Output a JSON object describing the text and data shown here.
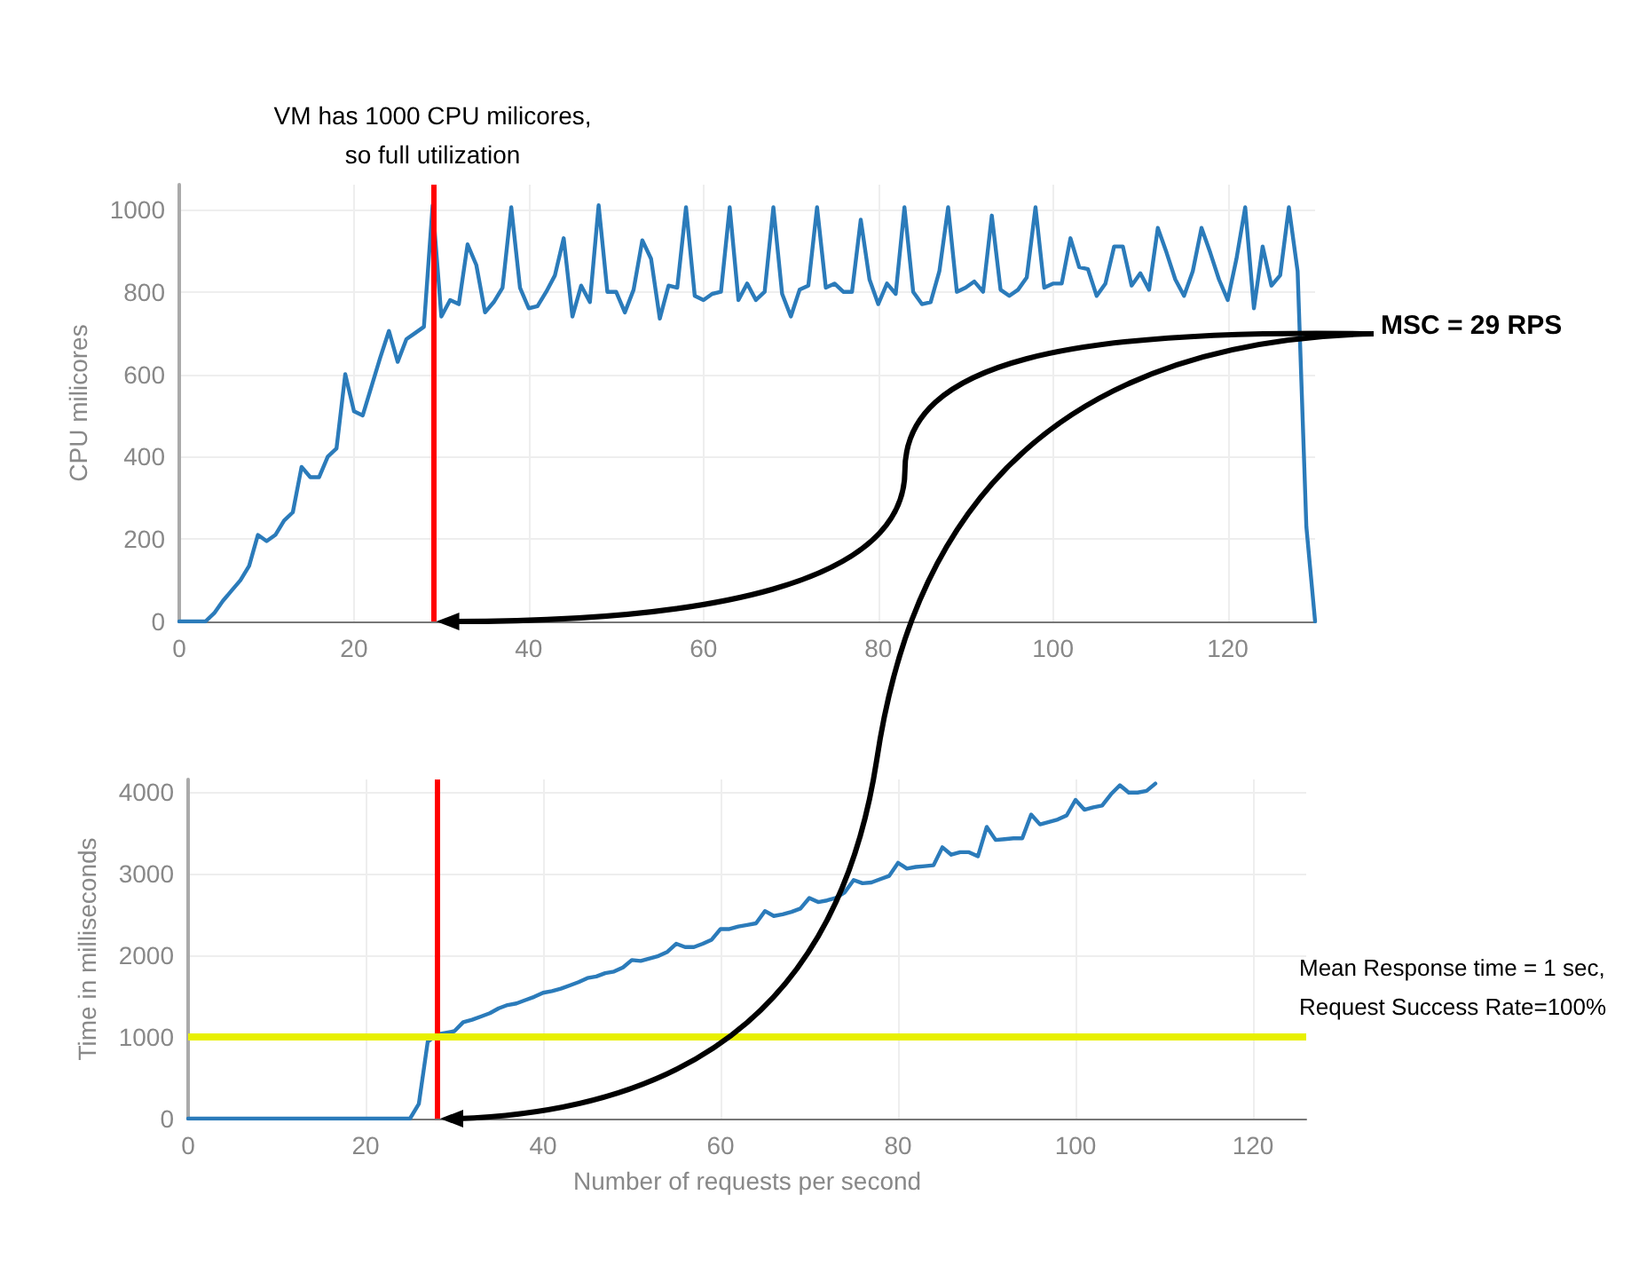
{
  "chart_data": [
    {
      "type": "line",
      "ylabel": "CPU milicores",
      "x": [
        0,
        1,
        2,
        3,
        4,
        5,
        6,
        7,
        8,
        9,
        10,
        11,
        12,
        13,
        14,
        15,
        16,
        17,
        18,
        19,
        20,
        21,
        22,
        23,
        24,
        25,
        26,
        27,
        28,
        29,
        30,
        31,
        32,
        33,
        34,
        35,
        36,
        37,
        38,
        39,
        40,
        41,
        42,
        43,
        44,
        45,
        46,
        47,
        48,
        49,
        50,
        51,
        52,
        53,
        54,
        55,
        56,
        57,
        58,
        59,
        60,
        61,
        62,
        63,
        64,
        65,
        66,
        67,
        68,
        69,
        70,
        71,
        72,
        73,
        74,
        75,
        76,
        77,
        78,
        79,
        80,
        81,
        82,
        83,
        84,
        85,
        86,
        87,
        88,
        89,
        90,
        91,
        92,
        93,
        94,
        95,
        96,
        97,
        98,
        99,
        100,
        101,
        102,
        103,
        104,
        105,
        106,
        107,
        108,
        109,
        110,
        111,
        112,
        113,
        114,
        115,
        116,
        117,
        118,
        119,
        120,
        121,
        122,
        123,
        124,
        125,
        126,
        127,
        128,
        129,
        130
      ],
      "series": [
        {
          "color": "#2b7bba",
          "values": [
            0,
            0,
            0,
            0,
            20,
            50,
            75,
            100,
            135,
            210,
            195,
            210,
            245,
            265,
            375,
            350,
            350,
            400,
            420,
            600,
            510,
            500,
            570,
            640,
            705,
            630,
            685,
            700,
            715,
            1010,
            740,
            780,
            770,
            915,
            865,
            750,
            775,
            810,
            1005,
            810,
            760,
            765,
            800,
            840,
            930,
            740,
            815,
            775,
            1010,
            800,
            800,
            750,
            805,
            925,
            880,
            735,
            815,
            810,
            1005,
            790,
            780,
            795,
            800,
            1005,
            780,
            820,
            780,
            800,
            1005,
            795,
            740,
            805,
            815,
            1005,
            810,
            820,
            800,
            800,
            975,
            830,
            770,
            820,
            795,
            1005,
            800,
            770,
            775,
            850,
            1005,
            800,
            810,
            825,
            800,
            985,
            805,
            790,
            805,
            835,
            1005,
            810,
            820,
            820,
            930,
            860,
            855,
            790,
            820,
            910,
            910,
            815,
            845,
            805,
            955,
            895,
            830,
            790,
            850,
            955,
            895,
            830,
            780,
            880,
            1005,
            760,
            910,
            815,
            840,
            1005,
            850,
            230,
            0
          ]
        }
      ],
      "xlim": [
        0,
        130
      ],
      "xticks": [
        0,
        20,
        40,
        60,
        80,
        100,
        120
      ],
      "ylim": [
        0,
        1060
      ],
      "yticks": [
        0,
        200,
        400,
        600,
        800,
        1000
      ],
      "grid": true,
      "marker": "none",
      "line_style": "solid",
      "ref_lines": [
        {
          "axis": "x",
          "value": 29,
          "label": "VM has 1000 CPU milicores,\nso full utilization",
          "color": "#ff0000"
        }
      ],
      "annotations": [
        "MSC = 29 RPS"
      ]
    },
    {
      "type": "line",
      "xlabel": "Number of requests per second",
      "ylabel": "Time in milliseconds",
      "x": [
        0,
        1,
        2,
        3,
        4,
        5,
        6,
        7,
        8,
        9,
        10,
        11,
        12,
        13,
        14,
        15,
        16,
        17,
        18,
        19,
        20,
        21,
        22,
        23,
        24,
        25,
        26,
        27,
        28,
        29,
        30,
        31,
        32,
        33,
        34,
        35,
        36,
        37,
        38,
        39,
        40,
        41,
        42,
        43,
        44,
        45,
        46,
        47,
        48,
        49,
        50,
        51,
        52,
        53,
        54,
        55,
        56,
        57,
        58,
        59,
        60,
        61,
        62,
        63,
        64,
        65,
        66,
        67,
        68,
        69,
        70,
        71,
        72,
        73,
        74,
        75,
        76,
        77,
        78,
        79,
        80,
        81,
        82,
        83,
        84,
        85,
        86,
        87,
        88,
        89,
        90,
        91,
        92,
        93,
        94,
        95,
        96,
        97,
        98,
        99,
        100,
        101,
        102,
        103,
        104,
        105,
        106,
        107,
        108,
        109
      ],
      "series": [
        {
          "color": "#2b7bba",
          "values": [
            0,
            0,
            0,
            0,
            0,
            0,
            0,
            0,
            0,
            0,
            0,
            0,
            0,
            0,
            0,
            0,
            0,
            0,
            0,
            0,
            0,
            0,
            0,
            0,
            0,
            0,
            180,
            940,
            1030,
            1050,
            1070,
            1180,
            1210,
            1250,
            1290,
            1350,
            1390,
            1410,
            1450,
            1490,
            1540,
            1560,
            1590,
            1630,
            1670,
            1720,
            1740,
            1780,
            1800,
            1850,
            1940,
            1930,
            1960,
            1990,
            2040,
            2140,
            2100,
            2100,
            2140,
            2190,
            2320,
            2320,
            2350,
            2370,
            2390,
            2540,
            2480,
            2500,
            2530,
            2570,
            2700,
            2650,
            2670,
            2700,
            2770,
            2920,
            2880,
            2890,
            2930,
            2970,
            3130,
            3060,
            3080,
            3090,
            3100,
            3320,
            3230,
            3260,
            3260,
            3210,
            3570,
            3410,
            3420,
            3430,
            3430,
            3720,
            3600,
            3630,
            3660,
            3710,
            3900,
            3780,
            3810,
            3830,
            3970,
            4080,
            3990,
            3990,
            4010,
            4100
          ]
        }
      ],
      "xlim": [
        0,
        126
      ],
      "xticks": [
        0,
        20,
        40,
        60,
        80,
        100,
        120
      ],
      "ylim": [
        0,
        4150
      ],
      "yticks": [
        0,
        1000,
        2000,
        3000,
        4000
      ],
      "grid": true,
      "marker": "none",
      "line_style": "solid",
      "ref_lines": [
        {
          "axis": "x",
          "value": 28,
          "color": "#ff0000"
        },
        {
          "axis": "y",
          "value": 1000,
          "color": "#e8f000"
        }
      ],
      "annotations": [
        {
          "text": "Mean Response time = 1 sec,\nRequest Success Rate=100%",
          "x": 126,
          "y": 1000
        }
      ]
    }
  ]
}
